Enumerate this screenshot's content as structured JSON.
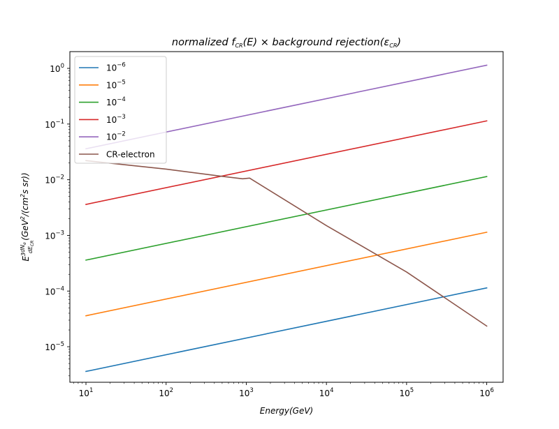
{
  "chart_data": {
    "type": "line",
    "x_scale": "log",
    "y_scale": "log",
    "xlim": [
      6.3,
      1600000
    ],
    "ylim": [
      2.3e-06,
      2.0
    ],
    "grid": false,
    "legend_position": "upper-left",
    "title": {
      "prefix": "normalized ",
      "f": "f",
      "f_sub": "CR",
      "mid": "(E) × background rejection(",
      "eps": "ε",
      "eps_sub": "CR",
      "suffix": ")"
    },
    "xlabel": "Energy(GeV)",
    "ylabel": {
      "main": "E",
      "main_sup": "3",
      "frac_num": "dN",
      "frac_num_sub": "e",
      "frac_den": "dE",
      "frac_den_sub": "CR",
      "units_open": "(GeV",
      "units_sup": "2",
      "units_mid": "/(cm",
      "units_sup2": "2",
      "units_close": "s sr))"
    },
    "x_ticks": [
      {
        "value": 10,
        "base": "10",
        "exp": "1"
      },
      {
        "value": 100,
        "base": "10",
        "exp": "2"
      },
      {
        "value": 1000,
        "base": "10",
        "exp": "3"
      },
      {
        "value": 10000,
        "base": "10",
        "exp": "4"
      },
      {
        "value": 100000,
        "base": "10",
        "exp": "5"
      },
      {
        "value": 1000000,
        "base": "10",
        "exp": "6"
      }
    ],
    "y_ticks": [
      {
        "value": 1e-05,
        "base": "10",
        "exp": "−5"
      },
      {
        "value": 0.0001,
        "base": "10",
        "exp": "−4"
      },
      {
        "value": 0.001,
        "base": "10",
        "exp": "−3"
      },
      {
        "value": 0.01,
        "base": "10",
        "exp": "−2"
      },
      {
        "value": 0.1,
        "base": "10",
        "exp": "−1"
      },
      {
        "value": 1,
        "base": "10",
        "exp": "0"
      }
    ],
    "series": [
      {
        "label_base": "10",
        "label_exp": "−6",
        "color": "#1f77b4",
        "x": [
          10,
          1000000
        ],
        "y": [
          3.6e-06,
          0.000114
        ]
      },
      {
        "label_base": "10",
        "label_exp": "−5",
        "color": "#ff7f0e",
        "x": [
          10,
          1000000
        ],
        "y": [
          3.6e-05,
          0.00114
        ]
      },
      {
        "label_base": "10",
        "label_exp": "−4",
        "color": "#2ca02c",
        "x": [
          10,
          1000000
        ],
        "y": [
          0.00036,
          0.0114
        ]
      },
      {
        "label_base": "10",
        "label_exp": "−3",
        "color": "#d62728",
        "x": [
          10,
          1000000
        ],
        "y": [
          0.0036,
          0.114
        ]
      },
      {
        "label_base": "10",
        "label_exp": "−2",
        "color": "#9467bd",
        "x": [
          10,
          1000000
        ],
        "y": [
          0.036,
          1.14
        ]
      },
      {
        "label": "CR-electron",
        "color": "#8c564b",
        "x": [
          10,
          100,
          500,
          900,
          1100,
          10000,
          100000,
          1000000
        ],
        "y": [
          0.022,
          0.0155,
          0.0115,
          0.0104,
          0.0107,
          0.0015,
          0.00022,
          2.35e-05
        ]
      }
    ]
  }
}
